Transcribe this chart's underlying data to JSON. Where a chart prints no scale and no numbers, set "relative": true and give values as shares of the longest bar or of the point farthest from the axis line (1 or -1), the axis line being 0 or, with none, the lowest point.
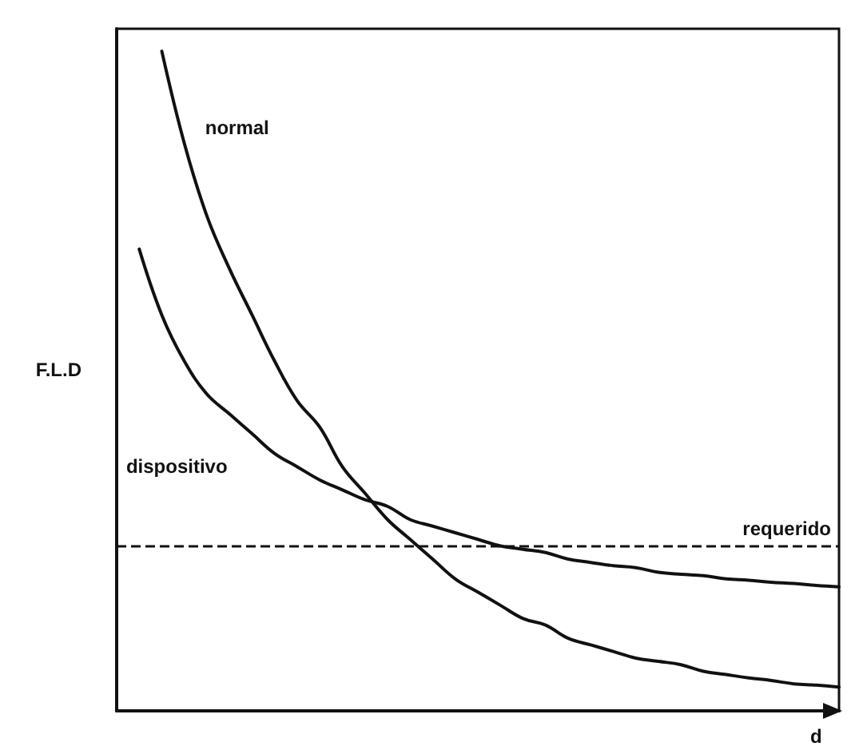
{
  "chart_data": {
    "type": "line",
    "relative": true,
    "xlabel": "d",
    "ylabel": "F.L.D",
    "marker": "none",
    "line_style": "solid",
    "categories": [
      null,
      null,
      null,
      null,
      null,
      null,
      null,
      null,
      null,
      null,
      null,
      null,
      null,
      null,
      null,
      null,
      null,
      null,
      null,
      null,
      null,
      null,
      null,
      null,
      null,
      null,
      null,
      null,
      null,
      null,
      null,
      null,
      null
    ],
    "series": [
      {
        "name": "normal",
        "color": "#111111",
        "values": [
          null,
          null,
          1.0,
          0.86,
          0.75,
          0.67,
          0.6,
          0.53,
          0.47,
          0.43,
          0.37,
          0.33,
          0.29,
          0.26,
          0.23,
          0.2,
          0.18,
          0.16,
          0.14,
          0.13,
          0.11,
          0.1,
          0.09,
          0.08,
          0.075,
          0.07,
          0.06,
          0.055,
          0.05,
          0.046,
          0.041,
          0.039,
          0.036
        ]
      },
      {
        "name": "dispositivo",
        "color": "#111111",
        "values": [
          null,
          0.7,
          0.6,
          0.53,
          0.48,
          0.45,
          0.42,
          0.39,
          0.37,
          0.35,
          0.335,
          0.32,
          0.31,
          0.29,
          0.28,
          0.27,
          0.26,
          0.25,
          0.245,
          0.24,
          0.23,
          0.225,
          0.22,
          0.217,
          0.21,
          0.207,
          0.205,
          0.2,
          0.198,
          0.195,
          0.193,
          0.19,
          0.188
        ]
      }
    ],
    "ref_lines": [
      {
        "axis": "y",
        "value": 0.25,
        "label": "requerido",
        "line_style": "dashed",
        "color": "#111111"
      }
    ]
  }
}
